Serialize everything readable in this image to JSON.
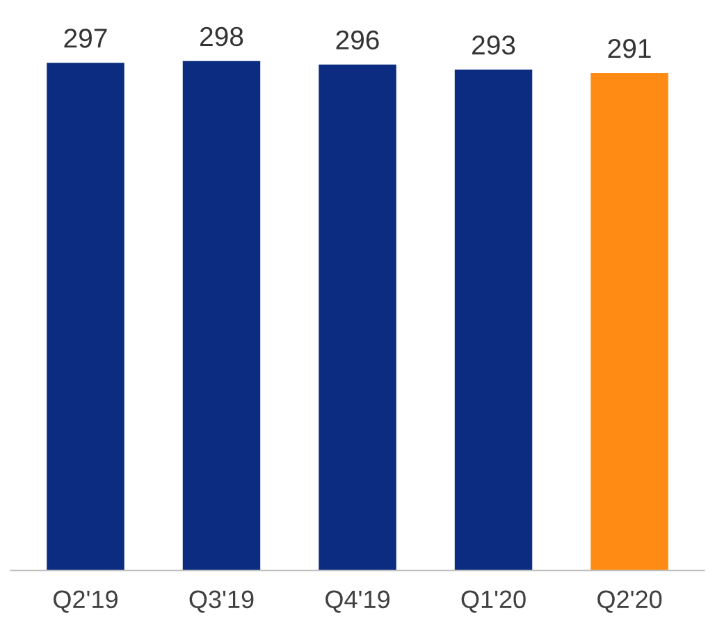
{
  "chart_data": {
    "type": "bar",
    "categories": [
      "Q2'19",
      "Q3'19",
      "Q4'19",
      "Q1'20",
      "Q2'20"
    ],
    "values": [
      297,
      298,
      296,
      293,
      291
    ],
    "colors": [
      "#0b2c80",
      "#0b2c80",
      "#0b2c80",
      "#0b2c80",
      "#ff8a14"
    ],
    "data_labels": true,
    "grid": false,
    "legend": false
  }
}
